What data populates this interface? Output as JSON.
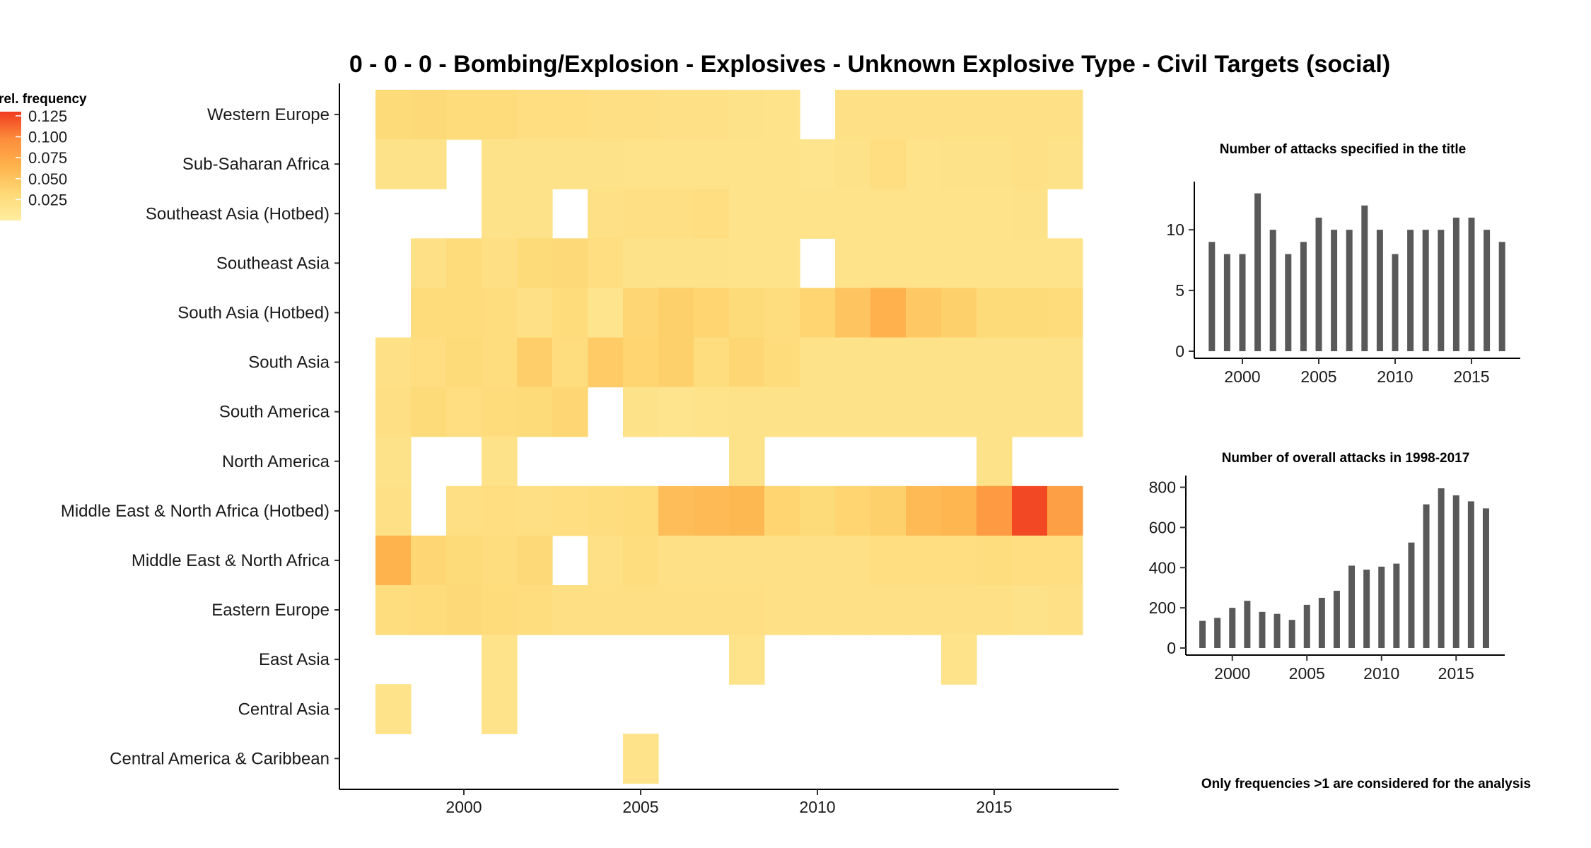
{
  "chart_data": [
    {
      "type": "heatmap",
      "title": "0 - 0 - 0 - Bombing/Explosion - Explosives - Unknown Explosive Type - Civil Targets (social)",
      "xlabel": "",
      "ylabel": "",
      "legend": {
        "title": "rel. frequency",
        "ticks": [
          "0.125",
          "0.100",
          "0.075",
          "0.050",
          "0.025"
        ],
        "tick_values": [
          0.125,
          0.1,
          0.075,
          0.05,
          0.025
        ],
        "range": [
          0,
          0.13
        ],
        "colors": [
          "#ffeda0",
          "#fed976",
          "#feb24c",
          "#fd8d3c",
          "#f03b20"
        ],
        "placement": "top-left"
      },
      "x_years": [
        1998,
        1999,
        2000,
        2001,
        2002,
        2003,
        2004,
        2005,
        2006,
        2007,
        2008,
        2009,
        2010,
        2011,
        2012,
        2013,
        2014,
        2015,
        2016,
        2017
      ],
      "x_ticks": [
        2000,
        2005,
        2010,
        2015
      ],
      "x_tick_labels": [
        "2000",
        "2005",
        "2010",
        "2015"
      ],
      "regions": [
        "Western Europe",
        "Sub-Saharan Africa",
        "Southeast Asia (Hotbed)",
        "Southeast Asia",
        "South Asia (Hotbed)",
        "South Asia",
        "South America",
        "North America",
        "Middle East & North Africa (Hotbed)",
        "Middle East & North Africa",
        "Eastern Europe",
        "East Asia",
        "Central Asia",
        "Central America & Caribbean"
      ],
      "values": [
        [
          0.03,
          0.032,
          0.028,
          0.028,
          0.024,
          0.024,
          0.022,
          0.022,
          0.02,
          0.02,
          0.018,
          0.016,
          null,
          0.02,
          0.02,
          0.02,
          0.02,
          0.02,
          0.02,
          0.02
        ],
        [
          0.018,
          0.018,
          null,
          0.018,
          0.018,
          0.018,
          0.018,
          0.016,
          0.016,
          0.016,
          0.016,
          0.016,
          0.014,
          0.018,
          0.024,
          0.016,
          0.018,
          0.018,
          0.02,
          0.018
        ],
        [
          null,
          null,
          null,
          0.018,
          0.018,
          null,
          0.02,
          0.022,
          0.022,
          0.024,
          0.016,
          0.016,
          0.016,
          0.016,
          0.016,
          0.016,
          0.016,
          0.016,
          0.018,
          null
        ],
        [
          null,
          0.02,
          0.028,
          0.022,
          0.03,
          0.032,
          0.024,
          0.018,
          0.018,
          0.018,
          0.016,
          0.016,
          null,
          0.016,
          0.016,
          0.016,
          0.016,
          0.016,
          0.016,
          0.016
        ],
        [
          null,
          0.028,
          0.028,
          0.026,
          0.02,
          0.028,
          0.014,
          0.034,
          0.04,
          0.036,
          0.03,
          0.026,
          0.036,
          0.05,
          0.066,
          0.046,
          0.04,
          0.03,
          0.03,
          0.028
        ],
        [
          0.02,
          0.024,
          0.03,
          0.026,
          0.042,
          0.026,
          0.044,
          0.036,
          0.04,
          0.026,
          0.034,
          0.028,
          0.018,
          0.018,
          0.018,
          0.018,
          0.018,
          0.018,
          0.018,
          0.018
        ],
        [
          0.022,
          0.03,
          0.024,
          0.028,
          0.03,
          0.034,
          null,
          0.018,
          0.014,
          0.016,
          0.018,
          0.018,
          0.018,
          0.018,
          0.018,
          0.018,
          0.018,
          0.018,
          0.018,
          0.018
        ],
        [
          0.018,
          null,
          null,
          0.018,
          null,
          null,
          null,
          null,
          null,
          null,
          0.018,
          null,
          null,
          null,
          null,
          null,
          null,
          0.018,
          null,
          null
        ],
        [
          0.02,
          null,
          0.022,
          0.024,
          0.022,
          0.024,
          0.026,
          0.028,
          0.056,
          0.058,
          0.06,
          0.036,
          0.03,
          0.036,
          0.04,
          0.058,
          0.062,
          0.086,
          0.125,
          0.082
        ],
        [
          0.064,
          0.034,
          0.03,
          0.026,
          0.032,
          null,
          0.02,
          0.026,
          0.02,
          0.02,
          0.02,
          0.02,
          0.02,
          0.02,
          0.024,
          0.024,
          0.024,
          0.026,
          0.024,
          0.024
        ],
        [
          0.026,
          0.028,
          0.032,
          0.028,
          0.026,
          0.022,
          0.022,
          0.022,
          0.022,
          0.022,
          0.022,
          0.02,
          0.02,
          0.02,
          0.02,
          0.02,
          0.02,
          0.02,
          0.018,
          0.02
        ],
        [
          null,
          null,
          null,
          0.016,
          null,
          null,
          null,
          null,
          null,
          null,
          0.016,
          null,
          null,
          null,
          null,
          null,
          0.016,
          null,
          null,
          null
        ],
        [
          0.016,
          null,
          null,
          0.016,
          null,
          null,
          null,
          null,
          null,
          null,
          null,
          null,
          null,
          null,
          null,
          null,
          null,
          null,
          null,
          null
        ],
        [
          null,
          null,
          null,
          null,
          null,
          null,
          null,
          0.016,
          null,
          null,
          null,
          null,
          null,
          null,
          null,
          null,
          null,
          null,
          null,
          null
        ]
      ]
    },
    {
      "type": "bar",
      "title": "Number of attacks specified in the title",
      "xlabel": "",
      "ylabel": "",
      "x": [
        1998,
        1999,
        2000,
        2001,
        2002,
        2003,
        2004,
        2005,
        2006,
        2007,
        2008,
        2009,
        2010,
        2011,
        2012,
        2013,
        2014,
        2015,
        2016,
        2017
      ],
      "values": [
        9,
        8,
        8,
        13,
        10,
        8,
        9,
        11,
        10,
        10,
        12,
        10,
        8,
        10,
        10,
        10,
        11,
        11,
        10,
        9
      ],
      "ylim": [
        0,
        13.5
      ],
      "y_ticks": [
        0,
        5,
        10
      ],
      "y_tick_labels": [
        "0",
        "5",
        "10"
      ],
      "x_ticks": [
        2000,
        2005,
        2010,
        2015
      ],
      "x_tick_labels": [
        "2000",
        "2005",
        "2010",
        "2015"
      ],
      "color": "#595959"
    },
    {
      "type": "bar",
      "title": "Number of overall attacks in 1998-2017",
      "xlabel": "",
      "ylabel": "",
      "x": [
        1998,
        1999,
        2000,
        2001,
        2002,
        2003,
        2004,
        2005,
        2006,
        2007,
        2008,
        2009,
        2010,
        2011,
        2012,
        2013,
        2014,
        2015,
        2016,
        2017
      ],
      "values": [
        135,
        150,
        200,
        235,
        180,
        170,
        140,
        215,
        250,
        285,
        410,
        390,
        405,
        420,
        525,
        715,
        795,
        760,
        730,
        695
      ],
      "ylim": [
        0,
        830
      ],
      "y_ticks": [
        0,
        200,
        400,
        600,
        800
      ],
      "y_tick_labels": [
        "0",
        "200",
        "400",
        "600",
        "800"
      ],
      "x_ticks": [
        2000,
        2005,
        2010,
        2015
      ],
      "x_tick_labels": [
        "2000",
        "2005",
        "2010",
        "2015"
      ],
      "color": "#595959"
    }
  ],
  "footnote": "Only frequencies >1 are considered for the analysis"
}
